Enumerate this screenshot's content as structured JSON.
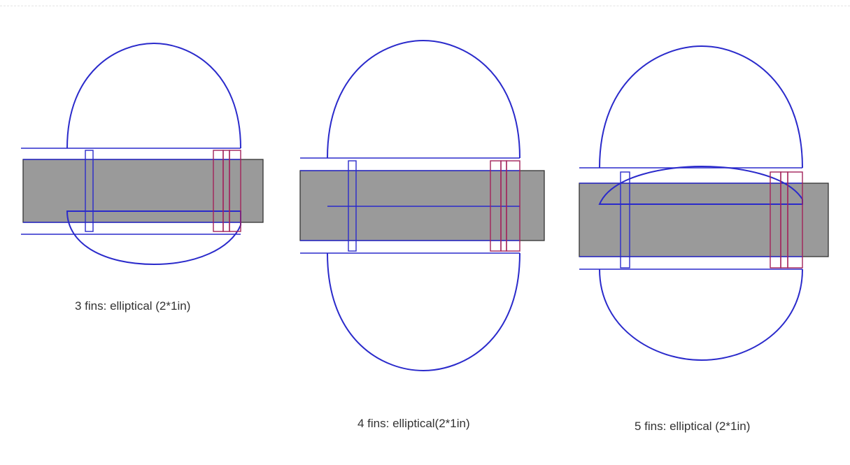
{
  "figures": [
    {
      "caption": "3 fins: elliptical (2*1in)"
    },
    {
      "caption": "4 fins: elliptical(2*1in)"
    },
    {
      "caption": "5 fins: elliptical (2*1in)"
    }
  ],
  "colors": {
    "fin_outline": "#2a2acb",
    "lug_outline": "#a3225a",
    "body_fill": "#9a9a9a",
    "body_stroke": "#333333",
    "caption_text": "#333333"
  }
}
